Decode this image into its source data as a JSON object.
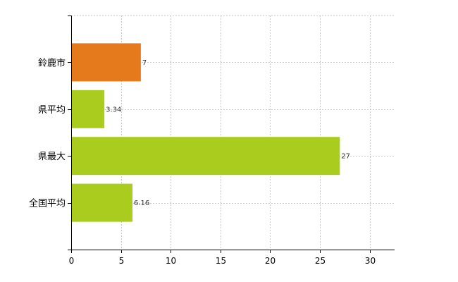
{
  "chart_data": {
    "type": "bar",
    "orientation": "horizontal",
    "categories": [
      "鈴鹿市",
      "県平均",
      "県最大",
      "全国平均"
    ],
    "values": [
      7,
      3.34,
      27,
      6.16
    ],
    "data_labels": [
      "7",
      "3.34",
      "27",
      "6.16"
    ],
    "bar_colors": [
      "#e47a1c",
      "#a9cc1e",
      "#a9cc1e",
      "#a9cc1e"
    ],
    "xlim": [
      0,
      32.5
    ],
    "x_ticks": [
      0,
      5,
      10,
      15,
      20,
      25,
      30
    ],
    "title": "",
    "xlabel": "",
    "ylabel": "",
    "grid": true,
    "legend": "none"
  }
}
